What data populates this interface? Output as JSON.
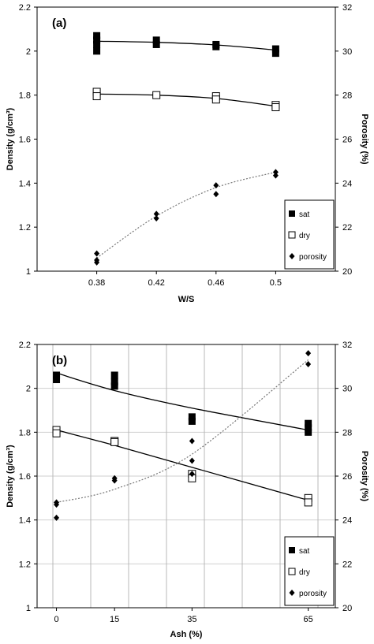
{
  "chart_data": [
    {
      "type": "scatter",
      "panel_label": "(a)",
      "xlabel": "W/S",
      "ylabel": "Density (g/cm³)",
      "y2label": "Porosity (%)",
      "categories": [
        "0.38",
        "0.42",
        "0.46",
        "0.5"
      ],
      "ylim": [
        1,
        2.2
      ],
      "y2lim": [
        20,
        32
      ],
      "yticks": [
        "1",
        "1.2",
        "1.4",
        "1.6",
        "1.8",
        "2",
        "2.2"
      ],
      "y2ticks": [
        "20",
        "22",
        "24",
        "26",
        "28",
        "30",
        "32"
      ],
      "grid": false,
      "legend_position": "bottom-right",
      "legend": [
        "sat",
        "dry",
        "porosity"
      ],
      "series": [
        {
          "name": "sat",
          "axis": "left",
          "marker": "filled-square",
          "points": [
            [
              0.38,
              2.07
            ],
            [
              0.38,
              2.05
            ],
            [
              0.38,
              2.03
            ],
            [
              0.38,
              2.0
            ],
            [
              0.42,
              2.05
            ],
            [
              0.42,
              2.03
            ],
            [
              0.46,
              2.03
            ],
            [
              0.46,
              2.02
            ],
            [
              0.5,
              2.01
            ],
            [
              0.5,
              1.99
            ]
          ],
          "fit": [
            [
              0.38,
              2.045
            ],
            [
              0.42,
              2.04
            ],
            [
              0.46,
              2.028
            ],
            [
              0.5,
              2.005
            ]
          ]
        },
        {
          "name": "dry",
          "axis": "left",
          "marker": "open-square",
          "points": [
            [
              0.38,
              1.815
            ],
            [
              0.38,
              1.795
            ],
            [
              0.42,
              1.8
            ],
            [
              0.46,
              1.795
            ],
            [
              0.46,
              1.78
            ],
            [
              0.5,
              1.755
            ],
            [
              0.5,
              1.745
            ]
          ],
          "fit": [
            [
              0.38,
              1.805
            ],
            [
              0.42,
              1.8
            ],
            [
              0.46,
              1.785
            ],
            [
              0.5,
              1.75
            ]
          ]
        },
        {
          "name": "porosity",
          "axis": "right",
          "marker": "filled-diamond",
          "points": [
            [
              0.38,
              20.8
            ],
            [
              0.38,
              20.5
            ],
            [
              0.38,
              20.4
            ],
            [
              0.42,
              22.6
            ],
            [
              0.42,
              22.4
            ],
            [
              0.46,
              23.9
            ],
            [
              0.46,
              23.5
            ],
            [
              0.5,
              24.5
            ],
            [
              0.5,
              24.35
            ]
          ],
          "fit": [
            [
              0.38,
              20.6
            ],
            [
              0.42,
              22.5
            ],
            [
              0.46,
              23.8
            ],
            [
              0.5,
              24.5
            ]
          ]
        }
      ]
    },
    {
      "type": "scatter",
      "panel_label": "(b)",
      "xlabel": "Ash (%)",
      "ylabel": "Density (g/cm³)",
      "y2label": "Porosity (%)",
      "categories": [
        "0",
        "15",
        "35",
        "65"
      ],
      "ylim": [
        1,
        2.2
      ],
      "y2lim": [
        20,
        32
      ],
      "yticks": [
        "1",
        "1.2",
        "1.4",
        "1.6",
        "1.8",
        "2",
        "2.2"
      ],
      "y2ticks": [
        "20",
        "22",
        "24",
        "26",
        "28",
        "30",
        "32"
      ],
      "grid": true,
      "legend_position": "bottom-right",
      "legend": [
        "sat",
        "dry",
        "porosity"
      ],
      "series": [
        {
          "name": "sat",
          "axis": "left",
          "marker": "filled-square",
          "points": [
            [
              0,
              2.06
            ],
            [
              0,
              2.04
            ],
            [
              15,
              2.06
            ],
            [
              15,
              2.03
            ],
            [
              15,
              2.01
            ],
            [
              35,
              1.87
            ],
            [
              35,
              1.85
            ],
            [
              65,
              1.84
            ],
            [
              65,
              1.82
            ],
            [
              65,
              1.8
            ]
          ],
          "fit": [
            [
              0,
              2.07
            ],
            [
              15,
              1.99
            ],
            [
              35,
              1.91
            ],
            [
              65,
              1.81
            ]
          ]
        },
        {
          "name": "dry",
          "axis": "left",
          "marker": "open-square",
          "points": [
            [
              0,
              1.81
            ],
            [
              0,
              1.795
            ],
            [
              15,
              1.76
            ],
            [
              15,
              1.755
            ],
            [
              35,
              1.61
            ],
            [
              35,
              1.59
            ],
            [
              65,
              1.5
            ],
            [
              65,
              1.48
            ]
          ],
          "fit": [
            [
              0,
              1.81
            ],
            [
              15,
              1.74
            ],
            [
              35,
              1.64
            ],
            [
              65,
              1.49
            ]
          ]
        },
        {
          "name": "porosity",
          "axis": "right",
          "marker": "filled-diamond",
          "points": [
            [
              0,
              24.8
            ],
            [
              0,
              24.7
            ],
            [
              0,
              24.1
            ],
            [
              15,
              25.9
            ],
            [
              15,
              25.8
            ],
            [
              35,
              27.6
            ],
            [
              35,
              26.7
            ],
            [
              35,
              26.1
            ],
            [
              65,
              31.6
            ],
            [
              65,
              31.1
            ]
          ],
          "fit": [
            [
              0,
              24.8
            ],
            [
              15,
              25.4
            ],
            [
              35,
              27.0
            ],
            [
              65,
              31.3
            ]
          ]
        }
      ]
    }
  ]
}
